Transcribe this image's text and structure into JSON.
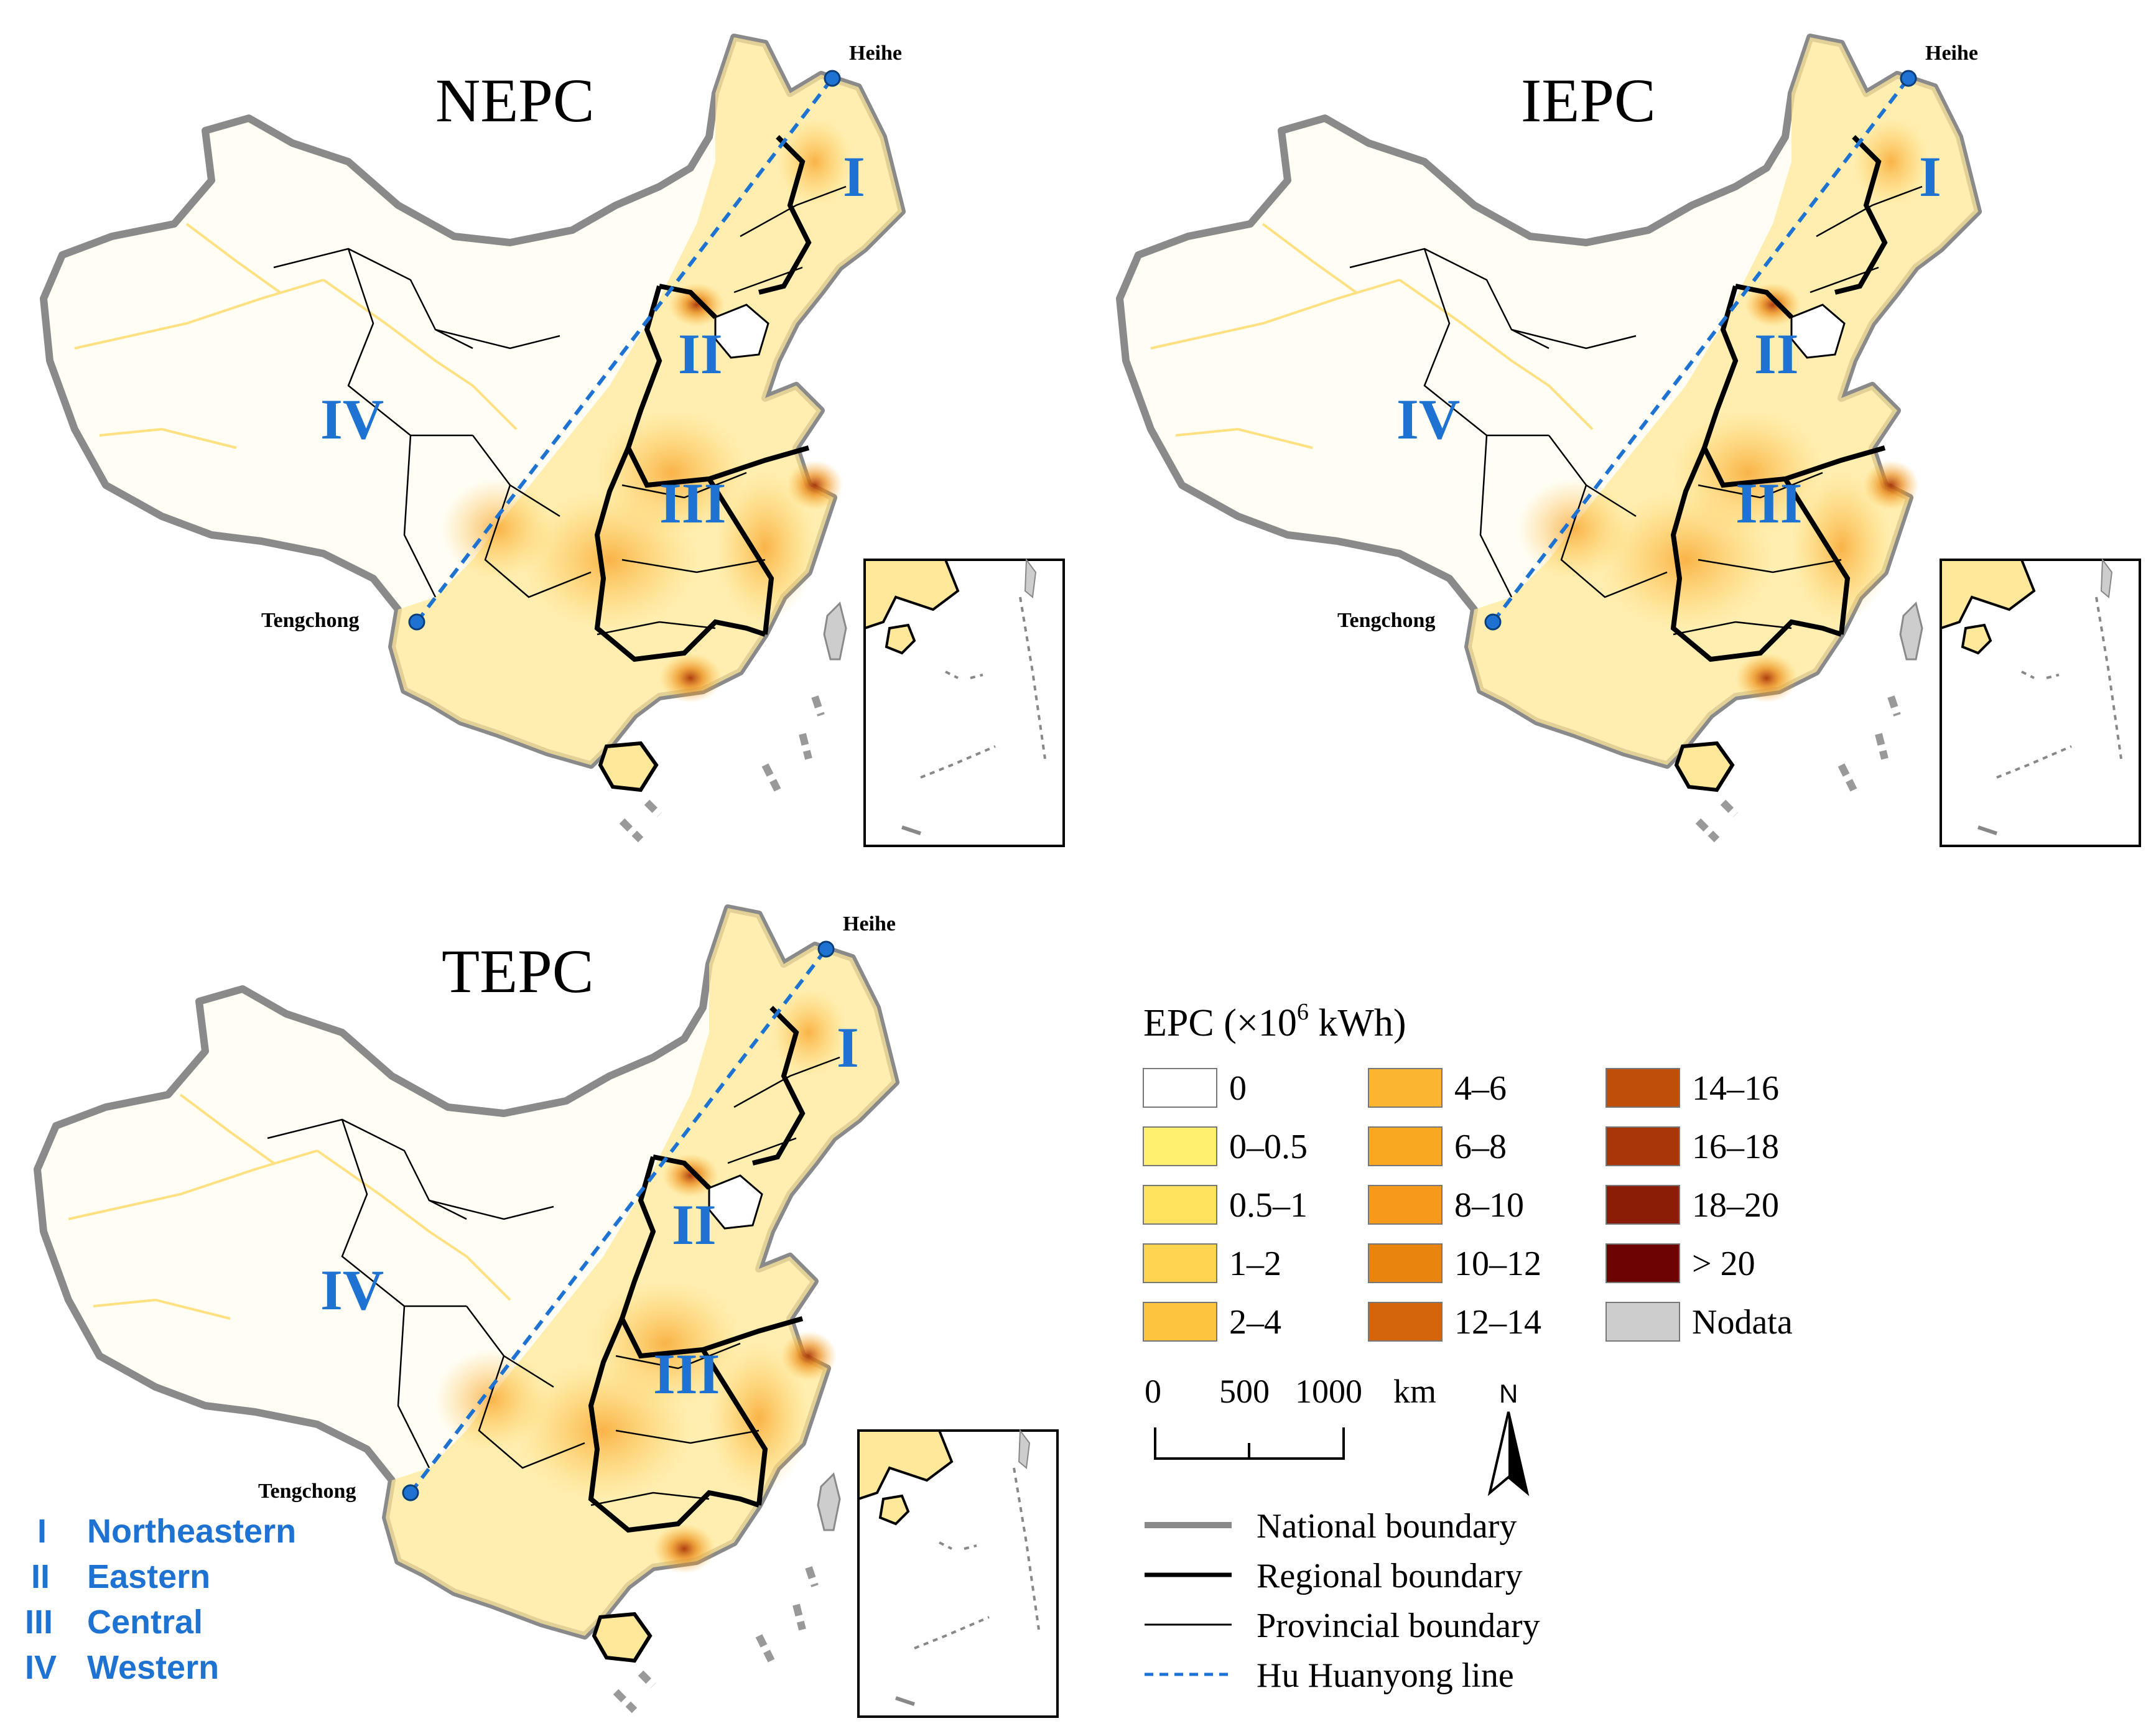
{
  "panels": [
    {
      "id": "nepc",
      "title": "NEPC"
    },
    {
      "id": "iepc",
      "title": "IEPC"
    },
    {
      "id": "tepc",
      "title": "TEPC"
    }
  ],
  "cities": {
    "north": "Heihe",
    "south": "Tengchong"
  },
  "region_numerals": [
    "I",
    "II",
    "III",
    "IV"
  ],
  "region_key": [
    {
      "numeral": "I",
      "name": "Northeastern"
    },
    {
      "numeral": "II",
      "name": "Eastern"
    },
    {
      "numeral": "III",
      "name": "Central"
    },
    {
      "numeral": "IV",
      "name": "Western"
    }
  ],
  "legend": {
    "title": "EPC  (×10",
    "title_exp": "6",
    "title_unit": " kWh)",
    "classes": [
      {
        "label": "0",
        "color": "#ffffff"
      },
      {
        "label": "0–0.5",
        "color": "#fff06e"
      },
      {
        "label": "0.5–1",
        "color": "#ffe35e"
      },
      {
        "label": "1–2",
        "color": "#ffd451"
      },
      {
        "label": "2–4",
        "color": "#fdc43d"
      },
      {
        "label": "4–6",
        "color": "#fbb531"
      },
      {
        "label": "6–8",
        "color": "#f9a822"
      },
      {
        "label": "8–10",
        "color": "#f79a1c"
      },
      {
        "label": "10–12",
        "color": "#e9850f"
      },
      {
        "label": "12–14",
        "color": "#d4650c"
      },
      {
        "label": "14–16",
        "color": "#c04e0b"
      },
      {
        "label": "16–18",
        "color": "#a93608"
      },
      {
        "label": "18–20",
        "color": "#8b1c06"
      },
      {
        "label": "> 20",
        "color": "#6e0303"
      },
      {
        "label": "Nodata",
        "color": "#cdcdcd"
      }
    ]
  },
  "scale_bar": {
    "labels": [
      "0",
      "500",
      "1000"
    ],
    "unit": "km"
  },
  "north_arrow": "N",
  "boundaries": [
    {
      "label": "National boundary",
      "style": "national"
    },
    {
      "label": "Regional boundary",
      "style": "regional"
    },
    {
      "label": "Provincial boundary",
      "style": "provincial"
    },
    {
      "label": "Hu Huanyong line",
      "style": "hu"
    }
  ],
  "colors": {
    "accent": "#1e73d2",
    "hu_line": "#1e73d2",
    "national": "#8a8a8a"
  }
}
